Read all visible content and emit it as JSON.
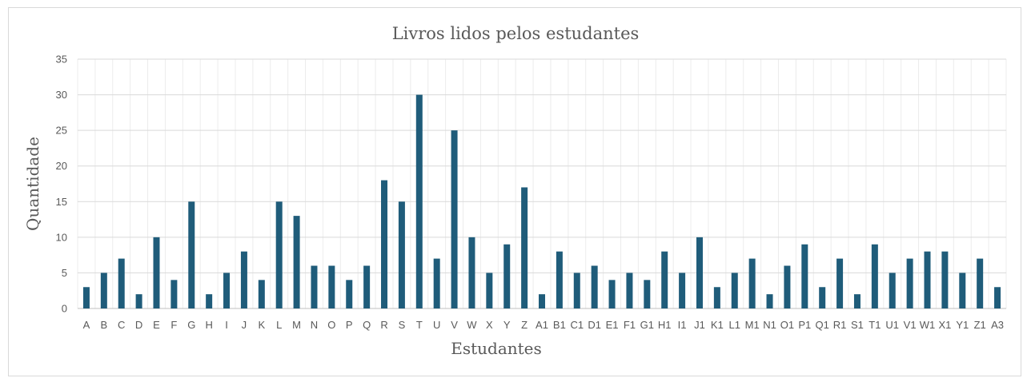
{
  "chart_data": {
    "type": "bar",
    "title": "Livros lidos pelos estudantes",
    "xlabel": "Estudantes",
    "ylabel": "Quantidade",
    "ylim": [
      0,
      35
    ],
    "yticks": [
      0,
      5,
      10,
      15,
      20,
      25,
      30,
      35
    ],
    "grid": true,
    "legend": "none",
    "bar_color": "#1F5C7A",
    "categories": [
      "A",
      "B",
      "C",
      "D",
      "E",
      "F",
      "G",
      "H",
      "I",
      "J",
      "K",
      "L",
      "M",
      "N",
      "O",
      "P",
      "Q",
      "R",
      "S",
      "T",
      "U",
      "V",
      "W",
      "X",
      "Y",
      "Z",
      "A1",
      "B1",
      "C1",
      "D1",
      "E1",
      "F1",
      "G1",
      "H1",
      "I1",
      "J1",
      "K1",
      "L1",
      "M1",
      "N1",
      "O1",
      "P1",
      "Q1",
      "R1",
      "S1",
      "T1",
      "U1",
      "V1",
      "W1",
      "X1",
      "Y1",
      "Z1",
      "A3"
    ],
    "values": [
      3,
      5,
      7,
      2,
      10,
      4,
      15,
      2,
      5,
      8,
      4,
      15,
      13,
      6,
      6,
      4,
      6,
      18,
      15,
      30,
      7,
      25,
      10,
      5,
      9,
      17,
      2,
      8,
      5,
      6,
      4,
      5,
      4,
      8,
      5,
      10,
      3,
      5,
      7,
      2,
      6,
      9,
      3,
      7,
      2,
      9,
      5,
      7,
      8,
      8,
      5,
      7,
      3
    ]
  }
}
